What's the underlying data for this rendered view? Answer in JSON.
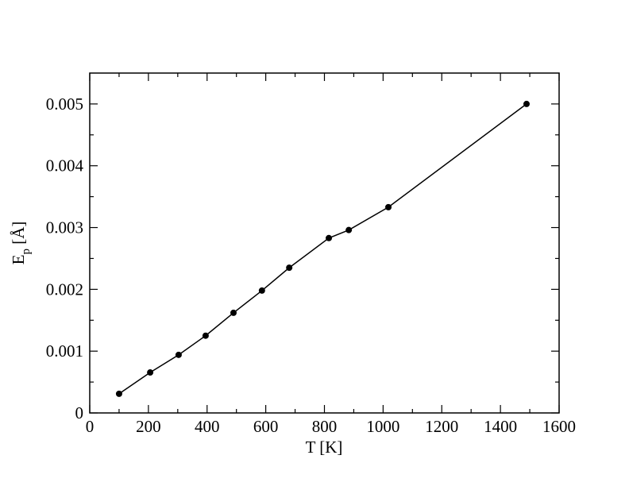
{
  "chart_data": {
    "type": "line",
    "x_label": "T [K]",
    "y_label": [
      "E",
      "p",
      " [Å]"
    ],
    "x": [
      100,
      206,
      303,
      395,
      490,
      587,
      680,
      815,
      883,
      1018,
      1489
    ],
    "series": [
      {
        "color": "#000000",
        "values": [
          0.00031,
          0.000655,
          0.00094,
          0.00125,
          0.00162,
          0.00198,
          0.00235,
          0.00283,
          0.00296,
          0.00333,
          0.005
        ]
      }
    ],
    "xlim": [
      0,
      1600
    ],
    "ylim": [
      0,
      0.0055
    ],
    "xticks": [
      0,
      200,
      400,
      600,
      800,
      1000,
      1200,
      1400,
      1600
    ],
    "yticks": [
      0,
      0.001,
      0.002,
      0.003,
      0.004,
      0.005
    ],
    "xticks_minor": [
      100,
      300,
      500,
      700,
      900,
      1100,
      1300,
      1500
    ],
    "yticks_minor": [
      0.0005,
      0.0015,
      0.0025,
      0.0035,
      0.0045
    ],
    "markers": true
  }
}
